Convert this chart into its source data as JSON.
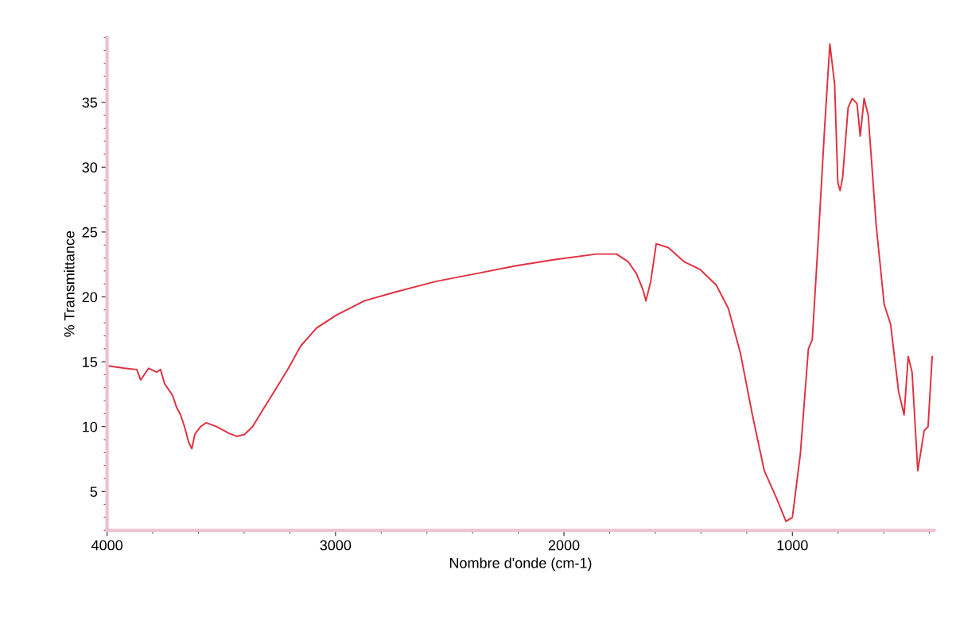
{
  "chart_data": {
    "type": "line",
    "xlabel": "Nombre d'onde (cm-1)",
    "ylabel": "% Transmittance",
    "xlim": [
      4000,
      380
    ],
    "xticks": [
      4000,
      3000,
      2000,
      1000
    ],
    "ylim": [
      2,
      40
    ],
    "yticks": [
      5,
      10,
      15,
      20,
      25,
      30,
      35
    ],
    "grid": false,
    "marker": "none",
    "line_style": "solid",
    "series": [
      {
        "color": "#e0303f",
        "x": [
          4000,
          3923,
          3870,
          3853,
          3818,
          3783,
          3766,
          3748,
          3713,
          3696,
          3678,
          3661,
          3643,
          3629,
          3616,
          3591,
          3566,
          3521,
          3468,
          3433,
          3398,
          3363,
          3311,
          3258,
          3206,
          3153,
          3083,
          2996,
          2873,
          2733,
          2558,
          2383,
          2208,
          2033,
          1858,
          1770,
          1718,
          1683,
          1655,
          1641,
          1620,
          1596,
          1543,
          1473,
          1403,
          1333,
          1280,
          1228,
          1175,
          1123,
          1070,
          1028,
          1000,
          965,
          930,
          913,
          885,
          860,
          836,
          815,
          801,
          791,
          780,
          756,
          738,
          717,
          703,
          686,
          668,
          633,
          598,
          570,
          535,
          511,
          493,
          476,
          451,
          423,
          406,
          388
        ],
        "values": [
          14.7,
          14.5,
          14.4,
          13.6,
          14.5,
          14.2,
          14.4,
          13.3,
          12.4,
          11.5,
          10.9,
          10.0,
          8.8,
          8.3,
          9.4,
          10.0,
          10.3,
          10.0,
          9.5,
          9.25,
          9.4,
          10.0,
          11.5,
          13.0,
          14.5,
          16.2,
          17.6,
          18.6,
          19.7,
          20.4,
          21.2,
          21.8,
          22.4,
          22.9,
          23.3,
          23.3,
          22.7,
          21.8,
          20.6,
          19.7,
          21.2,
          24.1,
          23.8,
          22.7,
          22.1,
          20.9,
          19.1,
          15.7,
          10.9,
          6.6,
          4.5,
          2.7,
          3.0,
          7.9,
          16.0,
          16.7,
          24.9,
          32.7,
          39.5,
          36.4,
          28.8,
          28.2,
          29.2,
          34.6,
          35.3,
          34.9,
          32.4,
          35.3,
          34.0,
          25.5,
          19.4,
          17.9,
          12.7,
          10.9,
          15.4,
          14.2,
          6.6,
          9.7,
          10.0,
          15.4
        ]
      }
    ]
  }
}
